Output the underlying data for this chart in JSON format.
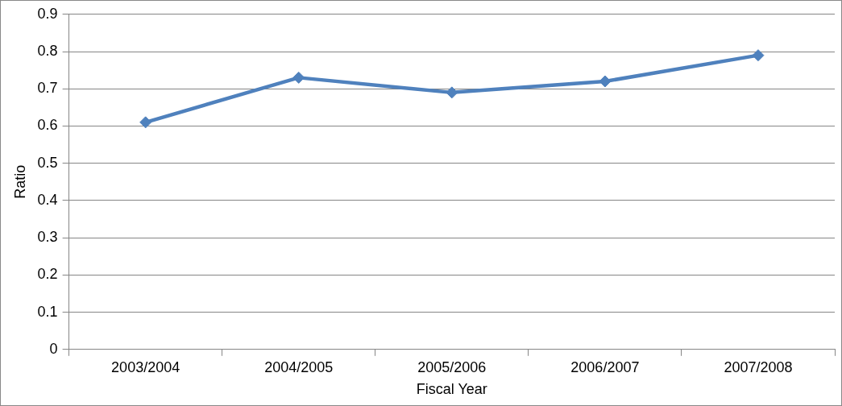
{
  "chart_data": {
    "type": "line",
    "xlabel": "Fiscal Year",
    "ylabel": "Ratio",
    "categories": [
      "2003/2004",
      "2004/2005",
      "2005/2006",
      "2006/2007",
      "2007/2008"
    ],
    "series": [
      {
        "color": "#4f81bd",
        "values": [
          0.61,
          0.73,
          0.69,
          0.72,
          0.79
        ]
      }
    ],
    "ylim": [
      0,
      0.9
    ],
    "yticks": [
      0,
      0.1,
      0.2,
      0.3,
      0.4,
      0.5,
      0.6,
      0.7,
      0.8,
      0.9
    ],
    "grid": "y",
    "legend": false,
    "marker": "diamond",
    "line_style": "solid"
  }
}
